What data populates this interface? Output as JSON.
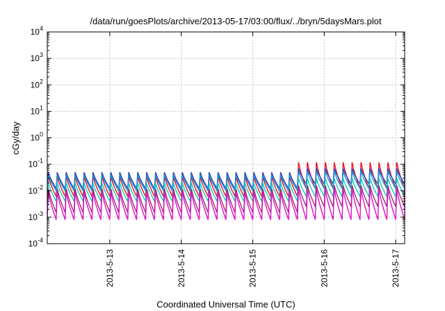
{
  "chart_data": {
    "type": "line",
    "title": "/data/run/goesPlots/archive/2013-05-17/03:00/flux/../bryn/5daysMars.plot",
    "xlabel": "Coordinated Universal Time (UTC)",
    "ylabel": "cGy/day",
    "y_scale": "log",
    "ylim": [
      0.0001,
      10000
    ],
    "y_ticks": [
      {
        "base": "10",
        "exp": "-4"
      },
      {
        "base": "10",
        "exp": "-3"
      },
      {
        "base": "10",
        "exp": "-2"
      },
      {
        "base": "10",
        "exp": "-1"
      },
      {
        "base": "10",
        "exp": "0"
      },
      {
        "base": "10",
        "exp": "1"
      },
      {
        "base": "10",
        "exp": "2"
      },
      {
        "base": "10",
        "exp": "3"
      },
      {
        "base": "10",
        "exp": "4"
      }
    ],
    "xlim": [
      "2013-05-12T03:00",
      "2013-05-17T03:00"
    ],
    "x_ticks": [
      "2013-5-13",
      "2013-5-14",
      "2013-5-15",
      "2013-5-16",
      "2013-5-17"
    ],
    "grid": true,
    "legend": "none",
    "pattern": {
      "period_hours": 3,
      "step_change_time": "2013-05-15T15:00"
    },
    "series": [
      {
        "color": "#e8141c",
        "peak_before": 0.035,
        "trough_before": 0.006,
        "peak_after": 0.12,
        "trough_after": 0.012
      },
      {
        "color": "#2c3fb8",
        "peak_before": 0.05,
        "trough_before": 0.012,
        "peak_after": 0.07,
        "trough_after": 0.018
      },
      {
        "color": "#1e8fd8",
        "peak_before": 0.04,
        "trough_before": 0.01,
        "peak_after": 0.055,
        "trough_after": 0.012
      },
      {
        "color": "#18c8c0",
        "peak_before": 0.02,
        "trough_before": 0.004,
        "peak_after": 0.03,
        "trough_after": 0.006
      },
      {
        "color": "#9a2c6e",
        "peak_before": 0.012,
        "trough_before": 0.0015,
        "peak_after": 0.016,
        "trough_after": 0.0025
      },
      {
        "color": "#e011c8",
        "peak_before": 0.009,
        "trough_before": 0.0008,
        "peak_after": 0.012,
        "trough_after": 0.0008
      }
    ]
  }
}
